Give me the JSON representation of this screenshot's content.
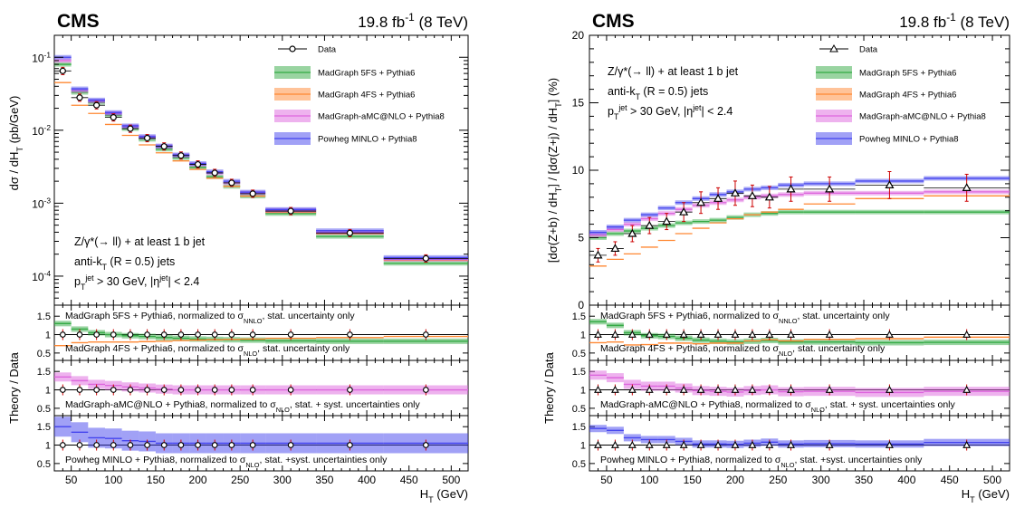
{
  "header": {
    "experiment": "CMS",
    "luminosity": "19.8 fb",
    "lumi_exp": "-1",
    "energy": "(8 TeV)"
  },
  "colors": {
    "data": "#000000",
    "error_bar": "#cc0000",
    "madgraph5fs": "#33aa44",
    "madgraph4fs": "#ff8833",
    "amcatnlo": "#dd66dd",
    "powheg": "#4444ee"
  },
  "legend": {
    "data": "Data",
    "mg5fs": "MadGraph 5FS + Pythia6",
    "mg4fs": "MadGraph 4FS + Pythia6",
    "amc": "MadGraph-aMC@NLO + Pythia8",
    "powheg": "Powheg MINLO + Pythia8"
  },
  "annotation": {
    "line1": "Z/γ*(→ ll) + at least 1 b jet",
    "line2a": "anti-k",
    "line2sub": "T",
    "line2b": " (R = 0.5) jets",
    "line3a": "p",
    "line3sub": "T",
    "line3sup": "jet",
    "line3b": " > 30 GeV, |η",
    "line3sup2": "jet",
    "line3c": "| < 2.4"
  },
  "ratio_labels": {
    "mg5fs_a": "MadGraph 5FS + Pythia6, normalized to σ",
    "mg5fs_sub": "NNLO",
    "mg5fs_b": ", stat. uncertainty only",
    "mg4fs_a": "MadGraph 4FS + Pythia6, normalized to σ",
    "mg4fs_sub": "NLO",
    "mg4fs_b": ", stat. uncertainty only",
    "amc_a": "MadGraph-aMC@NLO + Pythia8, normalized to σ",
    "amc_sub": "NLO",
    "amc_b": ", stat. + syst. uncertainties only",
    "powheg_a": "Powheg MINLO + Pythia8, normalized to σ",
    "powheg_sub": "NLO",
    "powheg_b": ", stat. +syst. uncertainties only"
  },
  "axis_labels": {
    "left_y": "dσ / dH",
    "left_y_sub": "T",
    "left_y_unit": " (pb/GeV)",
    "right_y": "[dσ(Z+b) / dH",
    "right_y_sub": "T",
    "right_y_mid": "] / [dσ(Z+j) / dH",
    "right_y_sub2": "T",
    "right_y_unit": "] (%)",
    "ratio_y": "Theory / Data",
    "x": "H",
    "x_sub": "T",
    "x_unit": " (GeV)"
  },
  "chart_data": [
    {
      "type": "scatter",
      "panel": "left-main",
      "xlabel": "H_T (GeV)",
      "ylabel": "dσ / dH_T (pb/GeV)",
      "ylog": true,
      "ylim": [
        4e-05,
        0.2
      ],
      "xlim": [
        30,
        520
      ],
      "y_ticks": [
        "10^-4",
        "10^-3",
        "10^-2",
        "10^-1"
      ],
      "bins": [
        [
          30,
          50
        ],
        [
          50,
          70
        ],
        [
          70,
          90
        ],
        [
          90,
          110
        ],
        [
          110,
          130
        ],
        [
          130,
          150
        ],
        [
          150,
          170
        ],
        [
          170,
          190
        ],
        [
          190,
          210
        ],
        [
          210,
          230
        ],
        [
          230,
          250
        ],
        [
          250,
          280
        ],
        [
          280,
          340
        ],
        [
          340,
          420
        ],
        [
          420,
          520
        ]
      ],
      "data": [
        0.065,
        0.028,
        0.022,
        0.015,
        0.0105,
        0.0078,
        0.006,
        0.0045,
        0.0034,
        0.0026,
        0.0019,
        0.00135,
        0.00078,
        0.00039,
        0.000175
      ],
      "series": [
        {
          "name": "MadGraph 5FS + Pythia6",
          "values": [
            0.08,
            0.033,
            0.024,
            0.016,
            0.0105,
            0.0075,
            0.0055,
            0.0042,
            0.0031,
            0.0023,
            0.0017,
            0.00125,
            0.00072,
            0.00035,
            0.00015
          ]
        },
        {
          "name": "MadGraph 4FS + Pythia6",
          "values": [
            0.045,
            0.022,
            0.017,
            0.012,
            0.0085,
            0.0063,
            0.0049,
            0.0038,
            0.0029,
            0.0022,
            0.0017,
            0.00125,
            0.00075,
            0.00038,
            0.000165
          ]
        },
        {
          "name": "MadGraph-aMC@NLO + Pythia8",
          "values": [
            0.09,
            0.035,
            0.025,
            0.017,
            0.0112,
            0.008,
            0.006,
            0.0045,
            0.0034,
            0.0026,
            0.0019,
            0.00138,
            0.0008,
            0.0004,
            0.00017
          ]
        },
        {
          "name": "Powheg MINLO + Pythia8",
          "values": [
            0.1,
            0.037,
            0.026,
            0.0175,
            0.0115,
            0.0082,
            0.0061,
            0.0046,
            0.0035,
            0.0027,
            0.002,
            0.00142,
            0.00082,
            0.00042,
            0.00018
          ]
        }
      ]
    },
    {
      "type": "scatter",
      "panel": "right-main",
      "xlabel": "H_T (GeV)",
      "ylabel": "[dσ(Z+b) / dH_T] / [dσ(Z+j) / dH_T] (%)",
      "ylim": [
        0,
        20
      ],
      "xlim": [
        30,
        520
      ],
      "y_ticks": [
        0,
        5,
        10,
        15,
        20
      ],
      "bins": [
        [
          30,
          50
        ],
        [
          50,
          70
        ],
        [
          70,
          90
        ],
        [
          90,
          110
        ],
        [
          110,
          130
        ],
        [
          130,
          150
        ],
        [
          150,
          170
        ],
        [
          170,
          190
        ],
        [
          190,
          210
        ],
        [
          210,
          230
        ],
        [
          230,
          250
        ],
        [
          250,
          280
        ],
        [
          280,
          340
        ],
        [
          340,
          420
        ],
        [
          420,
          520
        ]
      ],
      "data": [
        3.7,
        4.2,
        5.3,
        5.9,
        6.2,
        6.9,
        7.6,
        7.9,
        8.3,
        8.1,
        8.0,
        8.6,
        8.6,
        8.9,
        8.7
      ],
      "data_err": [
        0.5,
        0.5,
        0.6,
        0.6,
        0.6,
        0.7,
        0.8,
        0.8,
        0.9,
        0.8,
        0.8,
        0.9,
        0.9,
        1.0,
        1.0
      ],
      "series": [
        {
          "name": "MadGraph 5FS + Pythia6",
          "values": [
            5.0,
            5.3,
            5.5,
            5.7,
            5.9,
            6.1,
            6.2,
            6.3,
            6.5,
            6.7,
            6.8,
            6.9,
            6.9,
            6.9,
            6.9
          ]
        },
        {
          "name": "MadGraph 4FS + Pythia6",
          "values": [
            2.9,
            3.4,
            3.8,
            4.3,
            4.8,
            5.3,
            5.7,
            6.1,
            6.4,
            6.7,
            6.9,
            7.1,
            7.5,
            7.9,
            8.1
          ]
        },
        {
          "name": "MadGraph-aMC@NLO + Pythia8",
          "values": [
            5.2,
            5.6,
            6.0,
            6.4,
            6.8,
            7.1,
            7.4,
            7.6,
            7.8,
            8.0,
            8.1,
            8.2,
            8.3,
            8.3,
            8.4
          ]
        },
        {
          "name": "Powheg MINLO + Pythia8",
          "values": [
            5.4,
            5.8,
            6.3,
            6.7,
            7.2,
            7.6,
            7.9,
            8.2,
            8.4,
            8.6,
            8.7,
            8.9,
            9.0,
            9.2,
            9.4
          ]
        }
      ]
    },
    {
      "type": "line",
      "panel": "ratio",
      "ylabel": "Theory / Data",
      "ylim": [
        0.3,
        1.8
      ],
      "y_ticks": [
        0.5,
        1,
        1.5
      ],
      "x_ticks": [
        50,
        100,
        150,
        200,
        250,
        300,
        350,
        400,
        450,
        500
      ],
      "left": {
        "mg5fs": [
          1.3,
          1.15,
          1.05,
          1.0,
          0.97,
          0.95,
          0.92,
          0.9,
          0.88,
          0.87,
          0.86,
          0.85,
          0.83,
          0.82,
          0.82
        ],
        "mg4fs": [
          0.7,
          0.78,
          0.8,
          0.8,
          0.8,
          0.81,
          0.82,
          0.84,
          0.85,
          0.86,
          0.87,
          0.88,
          0.9,
          0.92,
          0.95
        ],
        "amc": [
          1.35,
          1.25,
          1.15,
          1.12,
          1.08,
          1.05,
          1.02,
          1.0,
          1.0,
          1.0,
          1.0,
          1.0,
          1.0,
          1.0,
          1.0
        ],
        "powheg": [
          1.5,
          1.35,
          1.2,
          1.18,
          1.12,
          1.1,
          1.05,
          1.05,
          1.05,
          1.05,
          1.05,
          1.05,
          1.05,
          1.05,
          1.05
        ]
      },
      "right": {
        "mg5fs": [
          1.35,
          1.25,
          1.05,
          0.97,
          0.95,
          0.9,
          0.85,
          0.82,
          0.8,
          0.82,
          0.84,
          0.8,
          0.8,
          0.78,
          0.79
        ],
        "mg4fs": [
          0.78,
          0.8,
          0.72,
          0.73,
          0.77,
          0.77,
          0.75,
          0.77,
          0.77,
          0.83,
          0.86,
          0.83,
          0.87,
          0.89,
          0.93
        ],
        "amc": [
          1.4,
          1.33,
          1.15,
          1.1,
          1.1,
          1.05,
          0.98,
          0.96,
          0.94,
          0.98,
          1.0,
          0.95,
          0.96,
          0.93,
          0.96
        ],
        "powheg": [
          1.45,
          1.4,
          1.2,
          1.15,
          1.15,
          1.1,
          1.03,
          1.03,
          1.02,
          1.05,
          1.08,
          1.03,
          1.04,
          1.03,
          1.07
        ]
      }
    }
  ],
  "x_tick_labels": [
    "50",
    "100",
    "150",
    "200",
    "250",
    "300",
    "350",
    "400",
    "450",
    "500"
  ],
  "right_y_tick_labels": [
    "0",
    "5",
    "10",
    "15",
    "20"
  ],
  "ratio_tick_labels": [
    "0.5",
    "1",
    "1.5"
  ]
}
